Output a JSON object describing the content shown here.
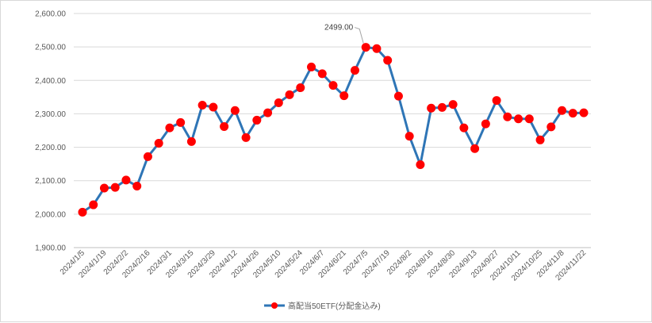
{
  "chart_data": {
    "type": "line",
    "title": "",
    "xlabel": "",
    "ylabel": "",
    "ylim": [
      1900,
      2600
    ],
    "y_ticks": [
      1900,
      2000,
      2100,
      2200,
      2300,
      2400,
      2500,
      2600
    ],
    "y_tick_labels": [
      "1,900.00",
      "2,000.00",
      "2,100.00",
      "2,200.00",
      "2,300.00",
      "2,400.00",
      "2,500.00",
      "2,600.00"
    ],
    "grid": "horizontal",
    "legend_position": "bottom",
    "x": [
      "2024/1/5",
      "2024/1/12",
      "2024/1/19",
      "2024/1/26",
      "2024/2/2",
      "2024/2/9",
      "2024/2/16",
      "2024/2/23",
      "2024/3/1",
      "2024/3/8",
      "2024/3/15",
      "2024/3/22",
      "2024/3/29",
      "2024/4/5",
      "2024/4/12",
      "2024/4/19",
      "2024/4/26",
      "2024/5/3",
      "2024/5/10",
      "2024/5/17",
      "2024/5/24",
      "2024/5/31",
      "2024/6/7",
      "2024/6/14",
      "2024/6/21",
      "2024/6/28",
      "2024/7/5",
      "2024/7/12",
      "2024/7/19",
      "2024/7/26",
      "2024/8/2",
      "2024/8/9",
      "2024/8/16",
      "2024/8/23",
      "2024/8/30",
      "2024/9/6",
      "2024/9/13",
      "2024/9/20",
      "2024/9/27",
      "2024/10/4",
      "2024/10/11",
      "2024/10/18",
      "2024/10/25",
      "2024/11/1",
      "2024/11/8",
      "2024/11/15",
      "2024/11/22"
    ],
    "x_tick_labels": [
      "2024/1/5",
      "2024/1/19",
      "2024/2/2",
      "2024/2/16",
      "2024/3/1",
      "2024/3/15",
      "2024/3/29",
      "2024/4/12",
      "2024/4/26",
      "2024/5/10",
      "2024/5/24",
      "2024/6/7",
      "2024/6/21",
      "2024/7/5",
      "2024/7/19",
      "2024/8/2",
      "2024/8/16",
      "2024/8/30",
      "2024/9/13",
      "2024/9/27",
      "2024/10/11",
      "2024/10/25",
      "2024/11/8",
      "2024/11/22"
    ],
    "series": [
      {
        "name": "高配当50ETF(分配金込み)",
        "line_color": "#2e75b6",
        "marker_color": "#ff0000",
        "values": [
          2006,
          2028,
          2078,
          2080,
          2102,
          2084,
          2172,
          2212,
          2258,
          2274,
          2217,
          2326,
          2320,
          2262,
          2310,
          2229,
          2281,
          2303,
          2333,
          2357,
          2378,
          2440,
          2420,
          2385,
          2354,
          2430,
          2499,
          2495,
          2460,
          2353,
          2233,
          2148,
          2317,
          2319,
          2328,
          2258,
          2196,
          2270,
          2340,
          2291,
          2285,
          2285,
          2222,
          2261,
          2310,
          2302,
          2303
        ]
      }
    ],
    "annotations": [
      {
        "label": "2499.00",
        "x": "2024/7/5",
        "y": 2499
      }
    ]
  }
}
